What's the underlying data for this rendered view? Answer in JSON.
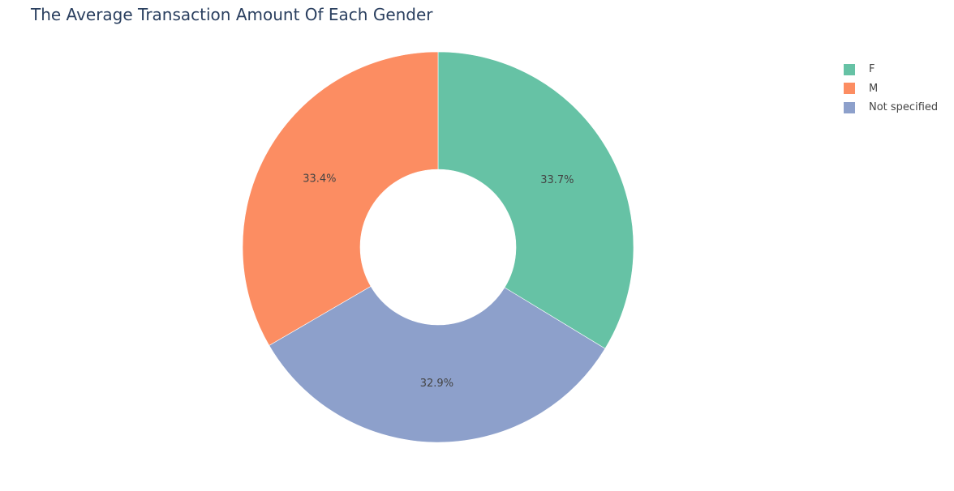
{
  "chart_data": {
    "type": "pie",
    "hole": 0.4,
    "title": "The Average Transaction Amount Of Each Gender",
    "legend_position": "top-right",
    "labels": [
      "F",
      "M",
      "Not specified"
    ],
    "values": [
      33.7,
      33.4,
      32.9
    ],
    "text_labels": [
      "33.7%",
      "33.4%",
      "32.9%"
    ],
    "slice_order": [
      "F",
      "Not specified",
      "M"
    ],
    "direction": "clockwise",
    "colors": {
      "F": "#66c2a5",
      "M": "#fc8d62",
      "Not specified": "#8da0cb"
    }
  }
}
